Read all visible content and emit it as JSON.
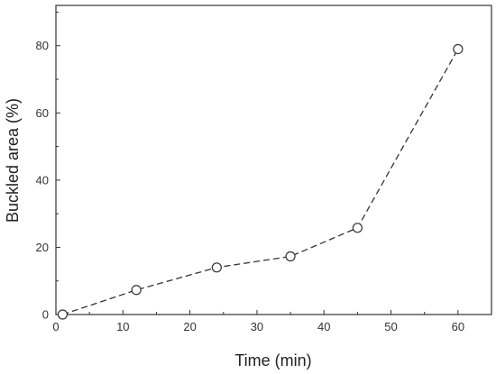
{
  "chart_data": {
    "type": "line",
    "title": "",
    "xlabel": "Time (min)",
    "ylabel": "Buckled area (%)",
    "xlim": [
      0,
      65
    ],
    "ylim": [
      0,
      92
    ],
    "xticks": [
      0,
      10,
      20,
      30,
      40,
      50,
      60
    ],
    "yticks": [
      0,
      20,
      40,
      60,
      80
    ],
    "grid": false,
    "series": [
      {
        "line_style": "dashed",
        "marker": "open-circle",
        "color": "#333333",
        "x": [
          1,
          12,
          24,
          35,
          45,
          60
        ],
        "y": [
          0,
          7.3,
          14,
          17.3,
          25.8,
          79
        ]
      }
    ]
  }
}
